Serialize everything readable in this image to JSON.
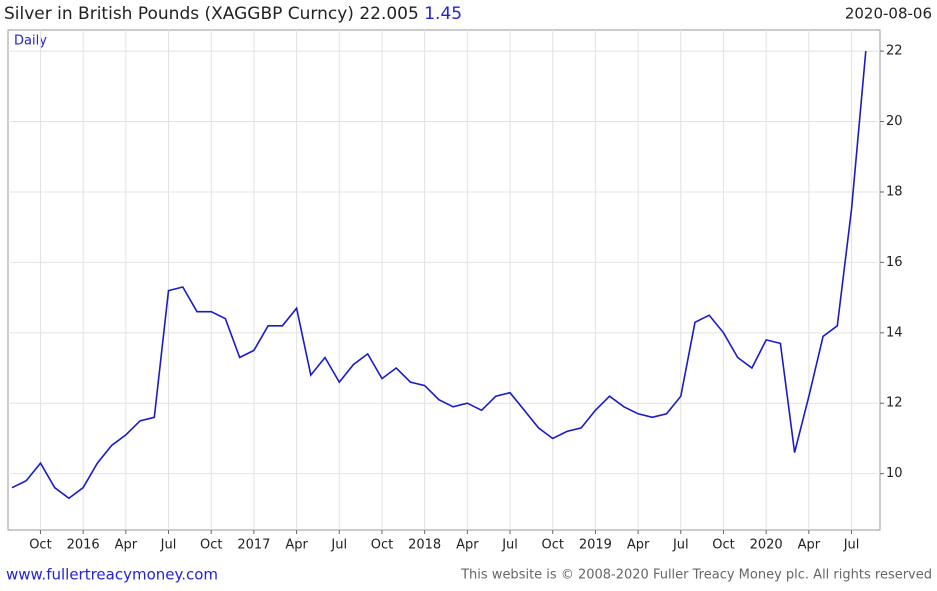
{
  "chart_data": {
    "type": "line",
    "title": "Silver in British Pounds (XAGGBP Curncy) 22.005",
    "change": "1.45",
    "date": "2020-08-06",
    "annotation": "Daily",
    "x": [
      "2015-08",
      "2015-09",
      "2015-10",
      "2015-11",
      "2015-12",
      "2016-01",
      "2016-02",
      "2016-03",
      "2016-04",
      "2016-05",
      "2016-06",
      "2016-07",
      "2016-08",
      "2016-09",
      "2016-10",
      "2016-11",
      "2016-12",
      "2017-01",
      "2017-02",
      "2017-03",
      "2017-04",
      "2017-05",
      "2017-06",
      "2017-07",
      "2017-08",
      "2017-09",
      "2017-10",
      "2017-11",
      "2017-12",
      "2018-01",
      "2018-02",
      "2018-03",
      "2018-04",
      "2018-05",
      "2018-06",
      "2018-07",
      "2018-08",
      "2018-09",
      "2018-10",
      "2018-11",
      "2018-12",
      "2019-01",
      "2019-02",
      "2019-03",
      "2019-04",
      "2019-05",
      "2019-06",
      "2019-07",
      "2019-08",
      "2019-09",
      "2019-10",
      "2019-11",
      "2019-12",
      "2020-01",
      "2020-02",
      "2020-03",
      "2020-04",
      "2020-05",
      "2020-06",
      "2020-07",
      "2020-08"
    ],
    "series": [
      {
        "color": "#1a1acc",
        "values": [
          9.6,
          9.8,
          10.3,
          9.6,
          9.3,
          9.6,
          10.3,
          10.8,
          11.1,
          11.5,
          11.6,
          15.2,
          15.3,
          14.6,
          14.6,
          14.4,
          13.3,
          13.5,
          14.2,
          14.2,
          14.7,
          12.8,
          13.3,
          12.6,
          13.1,
          13.4,
          12.7,
          13.0,
          12.6,
          12.5,
          12.1,
          11.9,
          12.0,
          11.8,
          12.2,
          12.3,
          11.8,
          11.3,
          11.0,
          11.2,
          11.3,
          11.8,
          12.2,
          11.9,
          11.7,
          11.6,
          11.7,
          12.2,
          14.3,
          14.5,
          14.0,
          13.3,
          13.0,
          13.8,
          13.7,
          10.6,
          12.2,
          13.9,
          14.2,
          17.5,
          22.0
        ]
      }
    ],
    "xlim": [
      "2015-08",
      "2020-09"
    ],
    "ylim": [
      8.4,
      22.6
    ],
    "yticks": [
      10,
      12,
      14,
      16,
      18,
      20,
      22
    ],
    "xticks": [
      {
        "value": "2015-10",
        "label": "Oct"
      },
      {
        "value": "2016-01",
        "label": "2016"
      },
      {
        "value": "2016-04",
        "label": "Apr"
      },
      {
        "value": "2016-07",
        "label": "Jul"
      },
      {
        "value": "2016-10",
        "label": "Oct"
      },
      {
        "value": "2017-01",
        "label": "2017"
      },
      {
        "value": "2017-04",
        "label": "Apr"
      },
      {
        "value": "2017-07",
        "label": "Jul"
      },
      {
        "value": "2017-10",
        "label": "Oct"
      },
      {
        "value": "2018-01",
        "label": "2018"
      },
      {
        "value": "2018-04",
        "label": "Apr"
      },
      {
        "value": "2018-07",
        "label": "Jul"
      },
      {
        "value": "2018-10",
        "label": "Oct"
      },
      {
        "value": "2019-01",
        "label": "2019"
      },
      {
        "value": "2019-04",
        "label": "Apr"
      },
      {
        "value": "2019-07",
        "label": "Jul"
      },
      {
        "value": "2019-10",
        "label": "Oct"
      },
      {
        "value": "2020-01",
        "label": "2020"
      },
      {
        "value": "2020-04",
        "label": "Apr"
      },
      {
        "value": "2020-07",
        "label": "Jul"
      }
    ],
    "grid": true
  },
  "footer": {
    "left": "www.fullertreacymoney.com",
    "right": "This website is © 2008-2020 Fuller Treacy Money plc. All rights reserved"
  }
}
